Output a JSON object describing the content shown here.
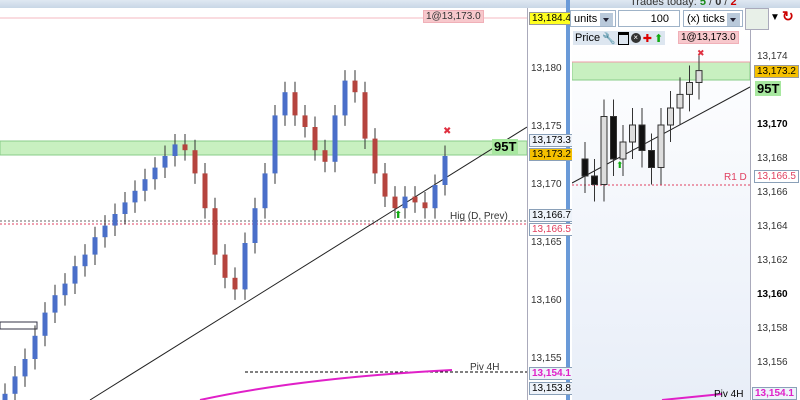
{
  "header": {
    "trades_today_label": "Trades today:",
    "trades_win": "5",
    "trades_flat": "0",
    "trades_loss": "2"
  },
  "toolbar": {
    "units_label": "units",
    "quantity": "100",
    "offset_unit": "(x) ticks"
  },
  "right_panel": {
    "price_label": "Price"
  },
  "left_chart": {
    "order_label": "1@13,173.0",
    "axis_ticks": [
      "13,180",
      "13,175",
      "13,170",
      "13,165",
      "13,160",
      "13,155"
    ],
    "price_boxes": {
      "top": "13,184.4",
      "ask": "13,173.3",
      "last": "13,173.2",
      "prev_high": "13,166.7",
      "r1": "13,166.5",
      "piv": "13,154.1",
      "low": "13,153.8"
    },
    "position_badge": "95T",
    "line_labels": {
      "prev_high": "Hig (D, Prev)",
      "r1": "R1 D",
      "piv": "Piv 4H"
    },
    "closes": [
      13152,
      13153.5,
      13155,
      13157,
      13159,
      13160.5,
      13161.5,
      13163,
      13164,
      13165.5,
      13166.5,
      13167.5,
      13168.5,
      13169.5,
      13170.5,
      13171.5,
      13172.5,
      13173.5,
      13173,
      13171,
      13168,
      13164,
      13162,
      13161,
      13165,
      13168,
      13171,
      13176,
      13178,
      13176,
      13175,
      13173,
      13172,
      13176,
      13179,
      13178,
      13174,
      13171,
      13169,
      13168,
      13169,
      13168.5,
      13168,
      13170,
      13172.5
    ]
  },
  "right_chart": {
    "order_label": "1@13,173.0",
    "axis_ticks": [
      {
        "v": "13,174",
        "b": false
      },
      {
        "v": "13,170",
        "b": true
      },
      {
        "v": "13,168",
        "b": false
      },
      {
        "v": "13,166",
        "b": false
      },
      {
        "v": "13,164",
        "b": false
      },
      {
        "v": "13,162",
        "b": false
      },
      {
        "v": "13,160",
        "b": true
      },
      {
        "v": "13,158",
        "b": false
      },
      {
        "v": "13,156",
        "b": false
      }
    ],
    "price_boxes": {
      "last": "13,173.2",
      "r1": "13,166.5",
      "piv": "13,154.1"
    },
    "position_badge": "95T",
    "line_labels": {
      "r1": "R1 D",
      "piv": "Piv 4H"
    },
    "closes": [
      13167,
      13166.5,
      13170.5,
      13168,
      13169,
      13170,
      13168.5,
      13167.5,
      13170,
      13171,
      13171.8,
      13172.5,
      13173.2
    ]
  },
  "colors": {
    "up_candle": "#4a6fc9",
    "down_candle": "#b5443e",
    "zone": "#c8f0c0",
    "pivot": "#e020c8",
    "r1": "#e04060"
  }
}
